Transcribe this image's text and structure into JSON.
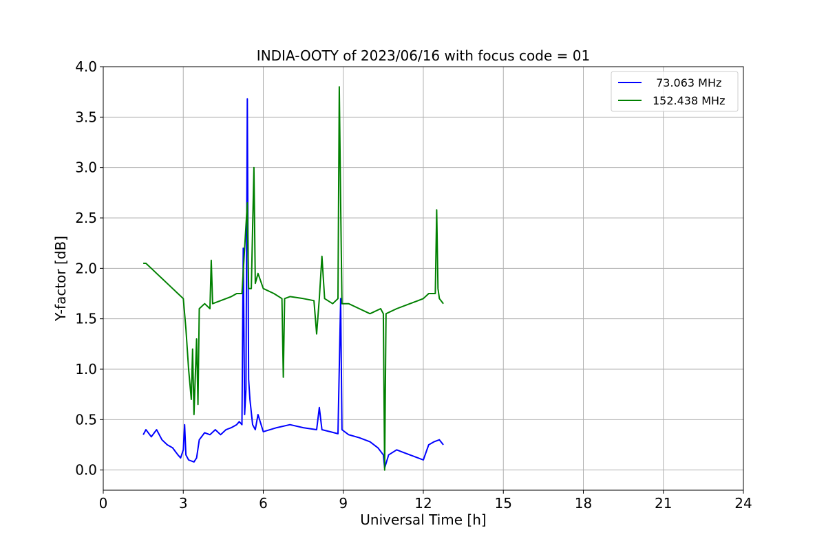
{
  "chart_data": {
    "type": "line",
    "title": "INDIA-OOTY of 2023/06/16 with focus code = 01",
    "xlabel": "Universal Time [h]",
    "ylabel": "Y-factor [dB]",
    "xlim": [
      0,
      24
    ],
    "ylim": [
      -0.2,
      4.0
    ],
    "xticks": [
      0,
      3,
      6,
      9,
      12,
      15,
      18,
      21,
      24
    ],
    "xtick_labels": [
      "0",
      "3",
      "6",
      "9",
      "12",
      "15",
      "18",
      "21",
      "24"
    ],
    "yticks": [
      0.0,
      0.5,
      1.0,
      1.5,
      2.0,
      2.5,
      3.0,
      3.5,
      4.0
    ],
    "ytick_labels": [
      "0.0",
      "0.5",
      "1.0",
      "1.5",
      "2.0",
      "2.5",
      "3.0",
      "3.5",
      "4.0"
    ],
    "grid": true,
    "legend_position": "top-right",
    "series": [
      {
        "name": " 73.063 MHz",
        "color": "#0000ff",
        "points": [
          [
            1.5,
            0.35
          ],
          [
            1.6,
            0.4
          ],
          [
            1.8,
            0.33
          ],
          [
            2.0,
            0.4
          ],
          [
            2.2,
            0.3
          ],
          [
            2.4,
            0.25
          ],
          [
            2.6,
            0.22
          ],
          [
            2.8,
            0.15
          ],
          [
            2.9,
            0.12
          ],
          [
            3.0,
            0.2
          ],
          [
            3.05,
            0.45
          ],
          [
            3.1,
            0.15
          ],
          [
            3.2,
            0.1
          ],
          [
            3.4,
            0.08
          ],
          [
            3.5,
            0.12
          ],
          [
            3.6,
            0.3
          ],
          [
            3.8,
            0.37
          ],
          [
            4.0,
            0.35
          ],
          [
            4.2,
            0.4
          ],
          [
            4.4,
            0.35
          ],
          [
            4.6,
            0.4
          ],
          [
            4.8,
            0.42
          ],
          [
            5.0,
            0.45
          ],
          [
            5.1,
            0.48
          ],
          [
            5.2,
            0.45
          ],
          [
            5.25,
            2.2
          ],
          [
            5.3,
            0.55
          ],
          [
            5.35,
            0.8
          ],
          [
            5.4,
            3.68
          ],
          [
            5.45,
            0.9
          ],
          [
            5.5,
            0.7
          ],
          [
            5.6,
            0.45
          ],
          [
            5.7,
            0.4
          ],
          [
            5.8,
            0.55
          ],
          [
            6.0,
            0.38
          ],
          [
            6.5,
            0.42
          ],
          [
            7.0,
            0.45
          ],
          [
            7.5,
            0.42
          ],
          [
            8.0,
            0.4
          ],
          [
            8.1,
            0.62
          ],
          [
            8.2,
            0.4
          ],
          [
            8.5,
            0.38
          ],
          [
            8.8,
            0.36
          ],
          [
            8.9,
            1.7
          ],
          [
            8.95,
            0.4
          ],
          [
            9.2,
            0.35
          ],
          [
            9.6,
            0.32
          ],
          [
            10.0,
            0.28
          ],
          [
            10.3,
            0.22
          ],
          [
            10.5,
            0.15
          ],
          [
            10.55,
            0.02
          ],
          [
            10.7,
            0.15
          ],
          [
            11.0,
            0.2
          ],
          [
            11.2,
            0.18
          ],
          [
            11.5,
            0.15
          ],
          [
            11.8,
            0.12
          ],
          [
            12.0,
            0.1
          ],
          [
            12.2,
            0.25
          ],
          [
            12.4,
            0.28
          ],
          [
            12.6,
            0.3
          ],
          [
            12.75,
            0.25
          ]
        ]
      },
      {
        "name": "152.438 MHz",
        "color": "#008000",
        "points": [
          [
            1.5,
            2.05
          ],
          [
            1.6,
            2.05
          ],
          [
            1.8,
            2.0
          ],
          [
            2.0,
            1.95
          ],
          [
            2.2,
            1.9
          ],
          [
            2.4,
            1.85
          ],
          [
            2.6,
            1.8
          ],
          [
            2.8,
            1.75
          ],
          [
            3.0,
            1.7
          ],
          [
            3.1,
            1.4
          ],
          [
            3.2,
            1.0
          ],
          [
            3.3,
            0.7
          ],
          [
            3.35,
            1.2
          ],
          [
            3.4,
            0.55
          ],
          [
            3.5,
            1.3
          ],
          [
            3.55,
            0.65
          ],
          [
            3.6,
            1.6
          ],
          [
            3.8,
            1.65
          ],
          [
            4.0,
            1.6
          ],
          [
            4.05,
            2.08
          ],
          [
            4.1,
            1.65
          ],
          [
            4.4,
            1.68
          ],
          [
            4.8,
            1.72
          ],
          [
            5.0,
            1.75
          ],
          [
            5.2,
            1.75
          ],
          [
            5.4,
            2.65
          ],
          [
            5.45,
            1.8
          ],
          [
            5.55,
            1.8
          ],
          [
            5.65,
            3.0
          ],
          [
            5.7,
            1.85
          ],
          [
            5.8,
            1.95
          ],
          [
            6.0,
            1.8
          ],
          [
            6.4,
            1.75
          ],
          [
            6.7,
            1.7
          ],
          [
            6.75,
            0.92
          ],
          [
            6.8,
            1.7
          ],
          [
            7.0,
            1.72
          ],
          [
            7.5,
            1.7
          ],
          [
            7.9,
            1.68
          ],
          [
            8.0,
            1.35
          ],
          [
            8.1,
            1.7
          ],
          [
            8.2,
            2.12
          ],
          [
            8.3,
            1.7
          ],
          [
            8.6,
            1.65
          ],
          [
            8.8,
            1.7
          ],
          [
            8.85,
            3.8
          ],
          [
            8.9,
            2.65
          ],
          [
            8.95,
            1.65
          ],
          [
            9.2,
            1.65
          ],
          [
            9.6,
            1.6
          ],
          [
            10.0,
            1.55
          ],
          [
            10.4,
            1.6
          ],
          [
            10.5,
            1.55
          ],
          [
            10.55,
            0.0
          ],
          [
            10.6,
            1.55
          ],
          [
            11.0,
            1.6
          ],
          [
            11.5,
            1.65
          ],
          [
            11.8,
            1.68
          ],
          [
            12.0,
            1.7
          ],
          [
            12.2,
            1.75
          ],
          [
            12.45,
            1.75
          ],
          [
            12.5,
            2.58
          ],
          [
            12.55,
            1.8
          ],
          [
            12.6,
            1.7
          ],
          [
            12.75,
            1.65
          ]
        ]
      }
    ]
  }
}
